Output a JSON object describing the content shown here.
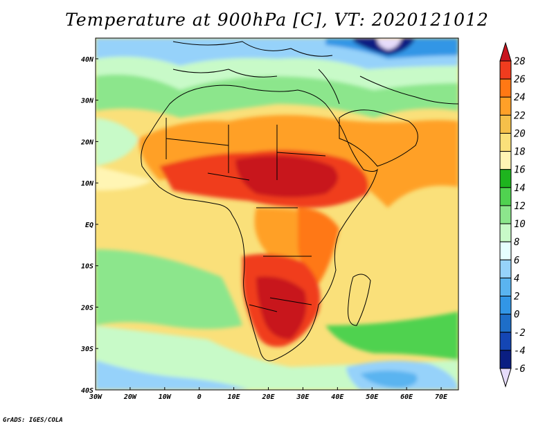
{
  "title": "Temperature at 900hPa [C], VT: 2020121012",
  "footer": "GrADS: IGES/COLA",
  "map": {
    "lon_range": [
      -30,
      75
    ],
    "lat_range": [
      -40,
      45
    ],
    "x_ticks": [
      "30W",
      "20W",
      "10W",
      "0",
      "10E",
      "20E",
      "30E",
      "40E",
      "50E",
      "60E",
      "70E"
    ],
    "y_ticks": [
      "40S",
      "30S",
      "20S",
      "10S",
      "EQ",
      "10N",
      "20N",
      "30N",
      "40N"
    ]
  },
  "colorbar": {
    "labels": [
      "28",
      "26",
      "24",
      "22",
      "20",
      "18",
      "16",
      "14",
      "12",
      "10",
      "8",
      "6",
      "4",
      "2",
      "0",
      "-2",
      "-4",
      "-6"
    ],
    "colors": [
      "#c8141e",
      "#f03c1e",
      "#ff7814",
      "#ffa028",
      "#f5c04a",
      "#fae07a",
      "#fff5b4",
      "#1eb41e",
      "#50d250",
      "#8ce68c",
      "#c8fac8",
      "#e6ffff",
      "#96d2fa",
      "#5ab4f0",
      "#3296e6",
      "#1e6ec8",
      "#1446b4",
      "#0a1e82",
      "#e6dcfa"
    ]
  }
}
